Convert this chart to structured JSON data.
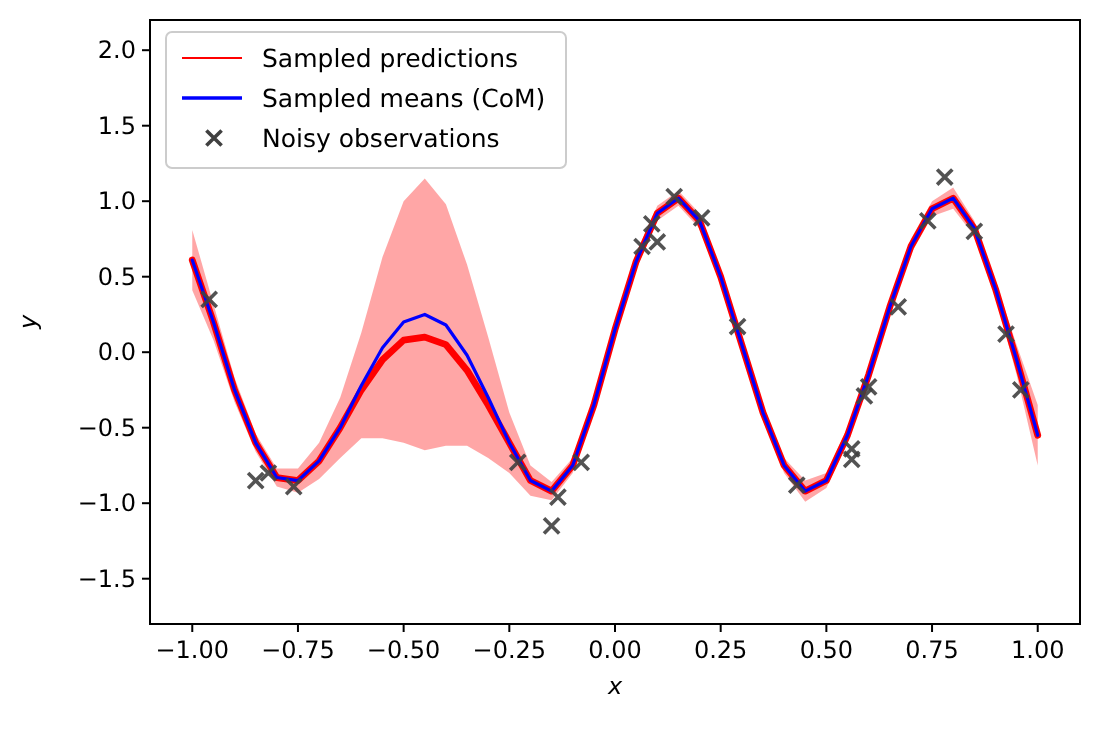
{
  "chart_data": {
    "type": "line",
    "xlabel": "x",
    "ylabel": "y",
    "xlim": [
      -1.1,
      1.1
    ],
    "ylim": [
      -1.8,
      2.2
    ],
    "xticks": [
      {
        "value": -1,
        "label": "−1.00"
      },
      {
        "value": -0.75,
        "label": "−0.75"
      },
      {
        "value": -0.5,
        "label": "−0.50"
      },
      {
        "value": -0.25,
        "label": "−0.25"
      },
      {
        "value": 0,
        "label": "0.00"
      },
      {
        "value": 0.25,
        "label": "0.25"
      },
      {
        "value": 0.5,
        "label": "0.50"
      },
      {
        "value": 0.75,
        "label": "0.75"
      },
      {
        "value": 1,
        "label": "1.00"
      }
    ],
    "yticks": [
      {
        "value": -1.5,
        "label": "−1.5"
      },
      {
        "value": -1,
        "label": "−1.0"
      },
      {
        "value": -0.5,
        "label": "−0.5"
      },
      {
        "value": 0,
        "label": "0.0"
      },
      {
        "value": 0.5,
        "label": "0.5"
      },
      {
        "value": 1,
        "label": "1.0"
      },
      {
        "value": 1.5,
        "label": "1.5"
      },
      {
        "value": 2,
        "label": "2.0"
      }
    ],
    "grid": false,
    "legend": "top left",
    "line_style": "solid",
    "x": [
      -1,
      -0.95,
      -0.9,
      -0.85,
      -0.8,
      -0.75,
      -0.7,
      -0.65,
      -0.6,
      -0.55,
      -0.5,
      -0.45,
      -0.4,
      -0.35,
      -0.3,
      -0.25,
      -0.2,
      -0.15,
      -0.1,
      -0.05,
      0,
      0.05,
      0.1,
      0.15,
      0.2,
      0.25,
      0.3,
      0.35,
      0.4,
      0.45,
      0.5,
      0.55,
      0.6,
      0.65,
      0.7,
      0.75,
      0.8,
      0.85,
      0.9,
      0.95,
      1
    ],
    "series": [
      {
        "name": "Sampled predictions",
        "color": "#ff0000",
        "marker": "none",
        "values": [
          0.61,
          0.2,
          -0.25,
          -0.6,
          -0.83,
          -0.85,
          -0.72,
          -0.5,
          -0.25,
          -0.05,
          0.08,
          0.1,
          0.05,
          -0.12,
          -0.35,
          -0.6,
          -0.85,
          -0.92,
          -0.75,
          -0.35,
          0.15,
          0.6,
          0.92,
          1.02,
          0.87,
          0.5,
          0.05,
          -0.4,
          -0.75,
          -0.92,
          -0.85,
          -0.55,
          -0.15,
          0.3,
          0.7,
          0.95,
          1.02,
          0.82,
          0.42,
          -0.05,
          -0.55
        ],
        "lower": [
          0.41,
          0.08,
          -0.33,
          -0.66,
          -0.89,
          -0.93,
          -0.84,
          -0.7,
          -0.57,
          -0.57,
          -0.6,
          -0.65,
          -0.62,
          -0.62,
          -0.7,
          -0.8,
          -0.95,
          -0.98,
          -0.8,
          -0.4,
          0.1,
          0.55,
          0.87,
          0.97,
          0.82,
          0.45,
          0,
          -0.45,
          -0.8,
          -0.99,
          -0.9,
          -0.6,
          -0.2,
          0.25,
          0.65,
          0.9,
          0.95,
          0.77,
          0.37,
          -0.15,
          -0.75
        ],
        "upper": [
          0.81,
          0.32,
          -0.17,
          -0.54,
          -0.77,
          -0.77,
          -0.6,
          -0.3,
          0.13,
          0.63,
          1.0,
          1.15,
          0.98,
          0.58,
          0.1,
          -0.4,
          -0.75,
          -0.86,
          -0.7,
          -0.3,
          0.2,
          0.65,
          0.97,
          1.07,
          0.92,
          0.55,
          0.1,
          -0.35,
          -0.7,
          -0.85,
          -0.8,
          -0.5,
          -0.1,
          0.35,
          0.75,
          1.0,
          1.09,
          0.87,
          0.47,
          0.05,
          -0.35
        ]
      },
      {
        "name": "Sampled means (CoM)",
        "color": "#0000ff",
        "marker": "none",
        "values": [
          0.61,
          0.2,
          -0.25,
          -0.6,
          -0.83,
          -0.85,
          -0.72,
          -0.5,
          -0.22,
          0.03,
          0.2,
          0.25,
          0.18,
          -0.02,
          -0.3,
          -0.6,
          -0.85,
          -0.92,
          -0.75,
          -0.35,
          0.15,
          0.6,
          0.92,
          1.02,
          0.87,
          0.5,
          0.05,
          -0.4,
          -0.75,
          -0.92,
          -0.85,
          -0.55,
          -0.15,
          0.3,
          0.7,
          0.95,
          1.02,
          0.82,
          0.42,
          -0.05,
          -0.55
        ]
      },
      {
        "name": "Noisy observations",
        "type": "scatter",
        "color": "#404040",
        "marker": "cross",
        "x": [
          -0.96,
          -0.85,
          -0.82,
          -0.76,
          -0.23,
          -0.15,
          -0.135,
          -0.08,
          0.064,
          0.087,
          0.1,
          0.14,
          0.205,
          0.29,
          0.43,
          0.56,
          0.56,
          0.59,
          0.6,
          0.67,
          0.74,
          0.78,
          0.85,
          0.925,
          0.96
        ],
        "values": [
          0.35,
          -0.85,
          -0.8,
          -0.89,
          -0.73,
          -1.15,
          -0.96,
          -0.73,
          0.7,
          0.85,
          0.73,
          1.03,
          0.89,
          0.17,
          -0.88,
          -0.64,
          -0.71,
          -0.29,
          -0.23,
          0.3,
          0.87,
          1.16,
          0.8,
          0.12,
          -0.25
        ]
      }
    ]
  }
}
